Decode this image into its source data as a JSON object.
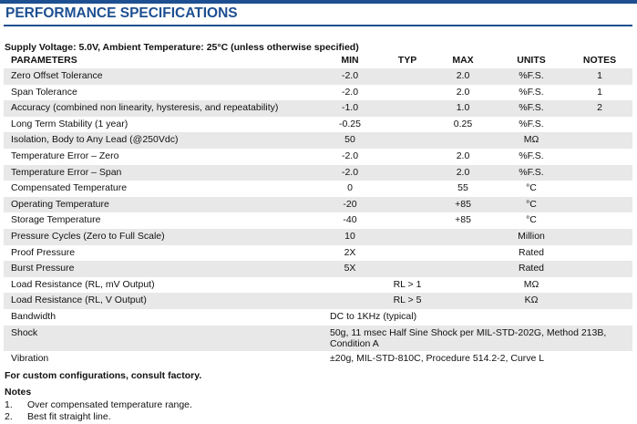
{
  "header": {
    "title": "PERFORMANCE SPECIFICATIONS"
  },
  "conditions": "Supply Voltage: 5.0V, Ambient Temperature: 25°C (unless otherwise specified)",
  "table": {
    "columns": {
      "parameter": "PARAMETERS",
      "min": "MIN",
      "typ": "TYP",
      "max": "MAX",
      "units": "UNITS",
      "notes": "NOTES"
    },
    "rows": [
      {
        "parameter": "Zero Offset Tolerance",
        "min": "-2.0",
        "max": "2.0",
        "units": "%F.S.",
        "notes": "1"
      },
      {
        "parameter": "Span Tolerance",
        "min": "-2.0",
        "max": "2.0",
        "units": "%F.S.",
        "notes": "1"
      },
      {
        "parameter": "Accuracy (combined non linearity, hysteresis, and repeatability)",
        "min": "-1.0",
        "max": "1.0",
        "units": "%F.S.",
        "notes": "2"
      },
      {
        "parameter": "Long Term Stability (1 year)",
        "min": "-0.25",
        "max": "0.25",
        "units": "%F.S."
      },
      {
        "parameter": "Isolation, Body to Any Lead (@250Vdc)",
        "min": "50",
        "units": "MΩ"
      },
      {
        "parameter": "Temperature Error – Zero",
        "min": "-2.0",
        "max": "2.0",
        "units": "%F.S."
      },
      {
        "parameter": "Temperature Error – Span",
        "min": "-2.0",
        "max": "2.0",
        "units": "%F.S."
      },
      {
        "parameter": "Compensated Temperature",
        "min": "0",
        "max": "55",
        "units": "°C"
      },
      {
        "parameter": "Operating Temperature",
        "min": "-20",
        "max": "+85",
        "units": "°C"
      },
      {
        "parameter": "Storage Temperature",
        "min": "-40",
        "max": "+85",
        "units": "°C"
      },
      {
        "parameter": "Pressure Cycles (Zero to Full Scale)",
        "min": "10",
        "units": "Million"
      },
      {
        "parameter": "Proof Pressure",
        "min": "2X",
        "units": "Rated"
      },
      {
        "parameter": "Burst Pressure",
        "min": "5X",
        "units": "Rated"
      },
      {
        "parameter": "Load Resistance (RL, mV Output)",
        "typ": "RL > 1",
        "units": "MΩ"
      },
      {
        "parameter": "Load Resistance (RL, V Output)",
        "typ": "RL > 5",
        "units": "KΩ"
      },
      {
        "parameter": "Bandwidth",
        "spec": "DC to 1KHz (typical)"
      },
      {
        "parameter": "Shock",
        "spec": "50g, 11 msec Half Sine Shock per MIL-STD-202G, Method 213B, Condition A"
      },
      {
        "parameter": "Vibration",
        "spec": "±20g, MIL-STD-810C, Procedure 514.2-2, Curve L"
      }
    ]
  },
  "footer": "For custom configurations, consult factory.",
  "notes": {
    "title": "Notes",
    "items": [
      {
        "number": "1.",
        "text": "Over compensated temperature range."
      },
      {
        "number": "2.",
        "text": "Best fit straight line."
      }
    ]
  }
}
